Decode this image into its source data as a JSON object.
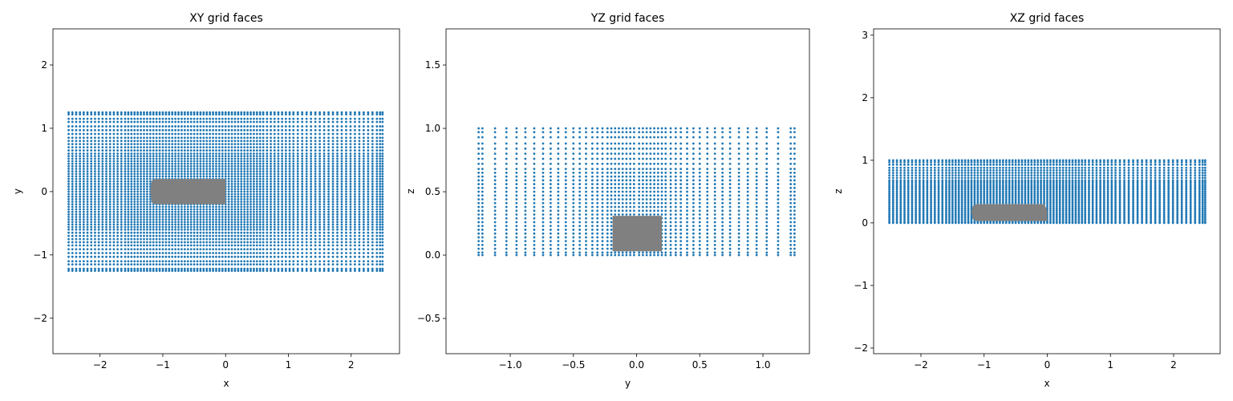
{
  "chart_data": [
    {
      "type": "scatter",
      "title": "XY grid faces",
      "x_label": "x",
      "y_label": "y",
      "xlim": [
        -2.75,
        2.77
      ],
      "ylim": [
        -2.56,
        2.57
      ],
      "xticks": [
        {
          "value": -2,
          "label": "−2"
        },
        {
          "value": -1,
          "label": "−1"
        },
        0,
        1,
        2
      ],
      "yticks": [
        {
          "value": -2,
          "label": "−2"
        },
        {
          "value": -1,
          "label": "−1"
        },
        0,
        1,
        2
      ],
      "color": "#1f77b4",
      "grid_x": [
        -2.5,
        -2.44,
        -2.38,
        -2.32,
        -2.26,
        -2.2,
        -2.14,
        -2.08,
        -2.02,
        -1.96,
        -1.9,
        -1.84,
        -1.78,
        -1.72,
        -1.66,
        -1.6,
        -1.55,
        -1.5,
        -1.45,
        -1.4,
        -1.35,
        -1.3,
        -1.25,
        -1.2,
        -1.15,
        -1.1,
        -1.05,
        -1,
        -0.95,
        -0.9,
        -0.85,
        -0.8,
        -0.75,
        -0.7,
        -0.65,
        -0.6,
        -0.55,
        -0.5,
        -0.45,
        -0.4,
        -0.35,
        -0.3,
        -0.25,
        -0.2,
        -0.15,
        -0.1,
        -0.05,
        0,
        0.05,
        0.1,
        0.15,
        0.2,
        0.25,
        0.3,
        0.35,
        0.4,
        0.45,
        0.5,
        0.55,
        0.6,
        0.66,
        0.72,
        0.78,
        0.84,
        0.9,
        0.96,
        1.02,
        1.08,
        1.15,
        1.22,
        1.29,
        1.36,
        1.43,
        1.5,
        1.57,
        1.64,
        1.71,
        1.78,
        1.85,
        1.92,
        1.99,
        2.06,
        2.13,
        2.2,
        2.27,
        2.34,
        2.41,
        2.46,
        2.5
      ],
      "grid_y": [
        1.25,
        1.22,
        1.15,
        1.1,
        1.03,
        0.97,
        0.91,
        0.85,
        0.8,
        0.75,
        0.7,
        0.65,
        0.6,
        0.56,
        0.52,
        0.48,
        0.44,
        0.4,
        0.36,
        0.32,
        0.28,
        0.24,
        0.2,
        0.16,
        0.12,
        0.08,
        0.04,
        0,
        -0.04,
        -0.08,
        -0.12,
        -0.16,
        -0.2,
        -0.24,
        -0.28,
        -0.32,
        -0.36,
        -0.4,
        -0.44,
        -0.48,
        -0.52,
        -0.56,
        -0.6,
        -0.65,
        -0.7,
        -0.75,
        -0.8,
        -0.85,
        -0.91,
        -0.97,
        -1.03,
        -1.1,
        -1.15,
        -1.22,
        -1.25
      ],
      "body": {
        "color": "#808080",
        "x": [
          -1.12,
          0,
          0,
          -1.12,
          -1.18,
          -1.2,
          -1.18
        ],
        "y": [
          -0.2,
          -0.2,
          0.2,
          0.2,
          0.17,
          0,
          -0.17
        ]
      }
    },
    {
      "type": "scatter",
      "title": "YZ grid faces",
      "x_label": "y",
      "y_label": "z",
      "xlim": [
        -1.508,
        1.368
      ],
      "ylim": [
        -0.778,
        1.785
      ],
      "xticks": [
        {
          "value": -1,
          "label": "−1.0"
        },
        {
          "value": -0.5,
          "label": "−0.5"
        },
        {
          "value": 0,
          "label": "0.0"
        },
        0.5,
        {
          "value": 1,
          "label": "1.0"
        }
      ],
      "yticks": [
        {
          "value": -0.5,
          "label": "−0.5"
        },
        {
          "value": 0,
          "label": "0.0"
        },
        0.5,
        {
          "value": 1,
          "label": "1.0"
        },
        1.5
      ],
      "color": "#1f77b4",
      "grid_x": [
        -1.25,
        -1.22,
        -1.12,
        -1.03,
        -0.95,
        -0.88,
        -0.81,
        -0.74,
        -0.68,
        -0.62,
        -0.56,
        -0.5,
        -0.45,
        -0.4,
        -0.35,
        -0.31,
        -0.27,
        -0.23,
        -0.2,
        -0.17,
        -0.14,
        -0.11,
        -0.08,
        -0.05,
        -0.02,
        0.02,
        0.05,
        0.08,
        0.11,
        0.14,
        0.17,
        0.2,
        0.23,
        0.27,
        0.31,
        0.35,
        0.4,
        0.45,
        0.5,
        0.56,
        0.62,
        0.68,
        0.74,
        0.81,
        0.88,
        0.95,
        1.03,
        1.12,
        1.22,
        1.25
      ],
      "grid_y": [
        1,
        0.97,
        0.93,
        0.88,
        0.84,
        0.8,
        0.76,
        0.72,
        0.68,
        0.65,
        0.62,
        0.59,
        0.56,
        0.53,
        0.5,
        0.47,
        0.44,
        0.41,
        0.38,
        0.35,
        0.32,
        0.29,
        0.26,
        0.23,
        0.2,
        0.17,
        0.14,
        0.11,
        0.08,
        0.05,
        0.02,
        0
      ],
      "body": {
        "color": "#808080",
        "x": [
          -0.19,
          0.2,
          0.2,
          -0.19
        ],
        "y": [
          0.03,
          0.03,
          0.31,
          0.31
        ]
      }
    },
    {
      "type": "scatter",
      "title": "XZ grid faces",
      "x_label": "x",
      "y_label": "z",
      "xlim": [
        -2.749,
        2.737
      ],
      "ylim": [
        -2.09,
        3.1
      ],
      "xticks": [
        {
          "value": -2,
          "label": "−2"
        },
        {
          "value": -1,
          "label": "−1"
        },
        0,
        1,
        2
      ],
      "yticks": [
        {
          "value": -2,
          "label": "−2"
        },
        {
          "value": -1,
          "label": "−1"
        },
        0,
        1,
        2,
        3
      ],
      "color": "#1f77b4",
      "grid_x": [
        -2.5,
        -2.44,
        -2.38,
        -2.32,
        -2.26,
        -2.2,
        -2.14,
        -2.08,
        -2.02,
        -1.96,
        -1.9,
        -1.84,
        -1.78,
        -1.72,
        -1.66,
        -1.6,
        -1.55,
        -1.5,
        -1.45,
        -1.4,
        -1.35,
        -1.3,
        -1.25,
        -1.2,
        -1.15,
        -1.1,
        -1.05,
        -1,
        -0.95,
        -0.9,
        -0.85,
        -0.8,
        -0.75,
        -0.7,
        -0.65,
        -0.6,
        -0.55,
        -0.5,
        -0.45,
        -0.4,
        -0.35,
        -0.3,
        -0.25,
        -0.2,
        -0.15,
        -0.1,
        -0.05,
        0,
        0.05,
        0.1,
        0.15,
        0.2,
        0.25,
        0.3,
        0.35,
        0.4,
        0.45,
        0.5,
        0.55,
        0.6,
        0.66,
        0.72,
        0.78,
        0.84,
        0.9,
        0.96,
        1.02,
        1.08,
        1.15,
        1.22,
        1.29,
        1.36,
        1.43,
        1.5,
        1.57,
        1.64,
        1.71,
        1.78,
        1.85,
        1.92,
        1.99,
        2.06,
        2.13,
        2.2,
        2.27,
        2.34,
        2.41,
        2.46,
        2.5
      ],
      "grid_y": [
        1,
        0.97,
        0.93,
        0.88,
        0.84,
        0.8,
        0.76,
        0.72,
        0.68,
        0.65,
        0.62,
        0.59,
        0.56,
        0.53,
        0.5,
        0.47,
        0.44,
        0.41,
        0.38,
        0.35,
        0.32,
        0.29,
        0.26,
        0.23,
        0.2,
        0.17,
        0.14,
        0.11,
        0.08,
        0.05,
        0.02,
        0
      ],
      "body": {
        "color": "#808080",
        "x": [
          -1.12,
          0,
          0,
          -0.05,
          -1.12,
          -1.18,
          -1.2,
          -1.18
        ],
        "y": [
          0.03,
          0.03,
          0.2,
          0.3,
          0.3,
          0.27,
          0.17,
          0.06
        ]
      }
    }
  ]
}
